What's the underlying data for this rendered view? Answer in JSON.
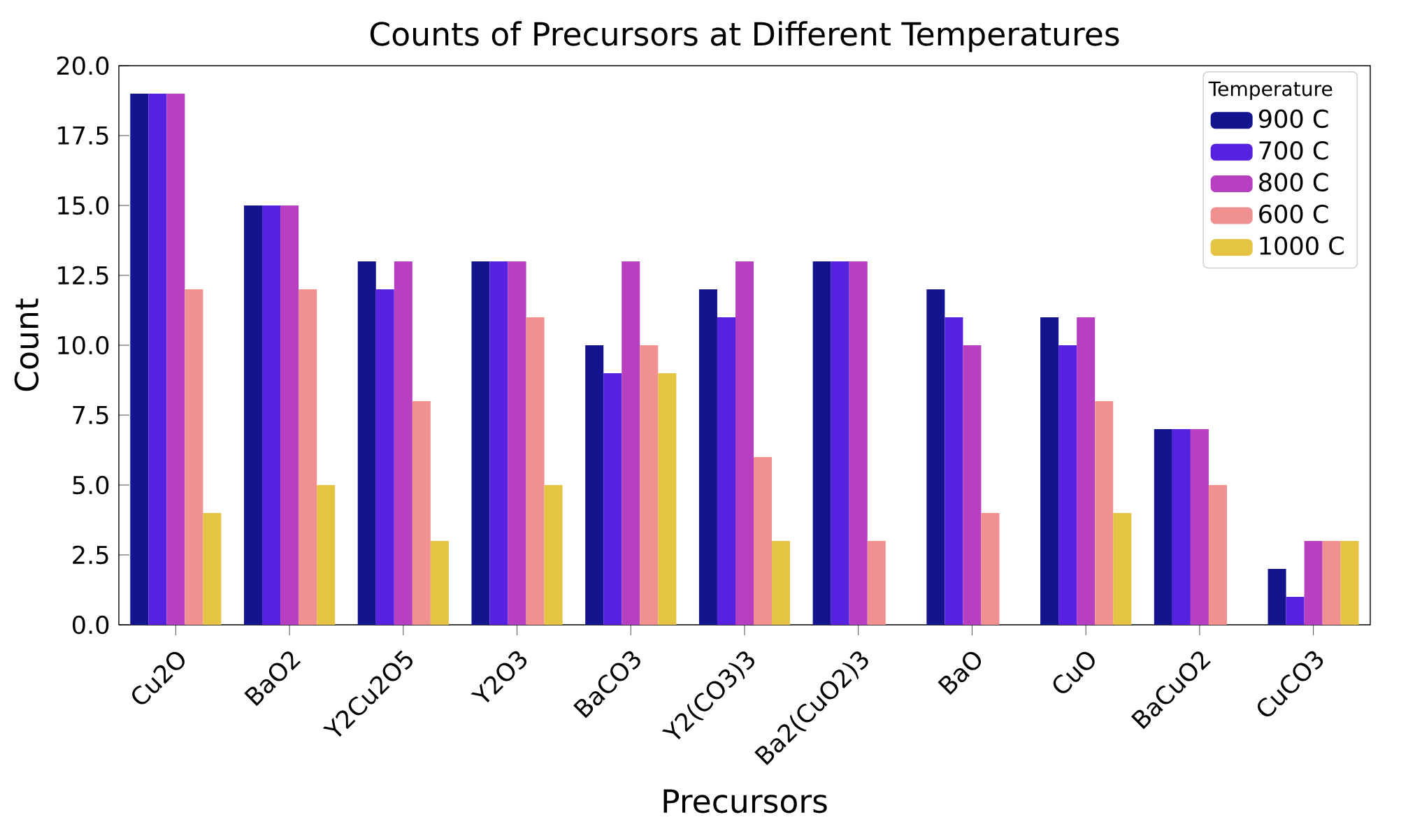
{
  "chart_data": {
    "type": "bar",
    "title": "Counts of Precursors at Different Temperatures",
    "xlabel": "Precursors",
    "ylabel": "Count",
    "legend_title": "Temperature",
    "legend": "top right",
    "categories": [
      "Cu2O",
      "BaO2",
      "Y2Cu2O5",
      "Y2O3",
      "BaCO3",
      "Y2(CO3)3",
      "Ba2(CuO2)3",
      "BaO",
      "CuO",
      "BaCuO2",
      "CuCO3"
    ],
    "ylim": [
      0,
      20
    ],
    "yticks": [
      {
        "value": 0,
        "label": "0.0"
      },
      {
        "value": 2.5,
        "label": "2.5"
      },
      {
        "value": 5,
        "label": "5.0"
      },
      {
        "value": 7.5,
        "label": "7.5"
      },
      {
        "value": 10,
        "label": "10.0"
      },
      {
        "value": 12.5,
        "label": "12.5"
      },
      {
        "value": 15,
        "label": "15.0"
      },
      {
        "value": 17.5,
        "label": "17.5"
      },
      {
        "value": 20,
        "label": "20.0"
      }
    ],
    "series": [
      {
        "name": "900 C",
        "color": "#15148f",
        "values": [
          19,
          15,
          13,
          13,
          10,
          12,
          13,
          12,
          11,
          7,
          2
        ]
      },
      {
        "name": "700 C",
        "color": "#5622e0",
        "values": [
          19,
          15,
          12,
          13,
          9,
          11,
          13,
          11,
          10,
          7,
          1
        ]
      },
      {
        "name": "800 C",
        "color": "#b640c0",
        "values": [
          19,
          15,
          13,
          13,
          13,
          13,
          13,
          10,
          11,
          7,
          3
        ]
      },
      {
        "name": "600 C",
        "color": "#f09090",
        "values": [
          12,
          12,
          8,
          11,
          10,
          6,
          3,
          4,
          8,
          5,
          3
        ]
      },
      {
        "name": "1000 C",
        "color": "#e5c444",
        "values": [
          4,
          5,
          3,
          5,
          9,
          3,
          null,
          null,
          4,
          null,
          3
        ]
      }
    ]
  }
}
